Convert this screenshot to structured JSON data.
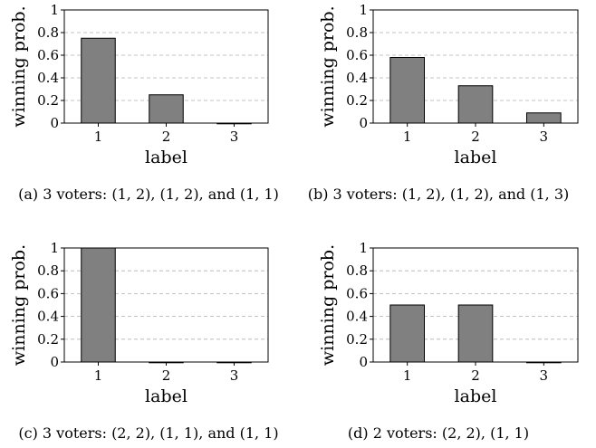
{
  "chart_data": [
    {
      "type": "bar",
      "categories": [
        "1",
        "2",
        "3"
      ],
      "values": [
        0.75,
        0.25,
        0.0
      ],
      "xlabel": "label",
      "ylabel": "winning prob.",
      "ylim": [
        0,
        1
      ],
      "yticks": [
        "0",
        "0.2",
        "0.4",
        "0.6",
        "0.8",
        "1"
      ],
      "grid": "horizontal-dashed",
      "bar_color": "#808080",
      "caption": "(a) 3 voters: (1, 2), (1, 2), and (1, 1)"
    },
    {
      "type": "bar",
      "categories": [
        "1",
        "2",
        "3"
      ],
      "values": [
        0.58,
        0.33,
        0.09
      ],
      "xlabel": "label",
      "ylabel": "winning prob.",
      "ylim": [
        0,
        1
      ],
      "yticks": [
        "0",
        "0.2",
        "0.4",
        "0.6",
        "0.8",
        "1"
      ],
      "grid": "horizontal-dashed",
      "bar_color": "#808080",
      "caption": "(b) 3 voters: (1, 2), (1, 2), and (1, 3)"
    },
    {
      "type": "bar",
      "categories": [
        "1",
        "2",
        "3"
      ],
      "values": [
        1.0,
        0.0,
        0.0
      ],
      "xlabel": "label",
      "ylabel": "winning prob.",
      "ylim": [
        0,
        1
      ],
      "yticks": [
        "0",
        "0.2",
        "0.4",
        "0.6",
        "0.8",
        "1"
      ],
      "grid": "horizontal-dashed",
      "bar_color": "#808080",
      "caption": "(c) 3 voters: (2, 2), (1, 1), and (1, 1)"
    },
    {
      "type": "bar",
      "categories": [
        "1",
        "2",
        "3"
      ],
      "values": [
        0.5,
        0.5,
        0.0
      ],
      "xlabel": "label",
      "ylabel": "winning prob.",
      "ylim": [
        0,
        1
      ],
      "yticks": [
        "0",
        "0.2",
        "0.4",
        "0.6",
        "0.8",
        "1"
      ],
      "grid": "horizontal-dashed",
      "bar_color": "#808080",
      "caption": "(d) 2 voters: (2, 2), (1, 1)"
    }
  ]
}
